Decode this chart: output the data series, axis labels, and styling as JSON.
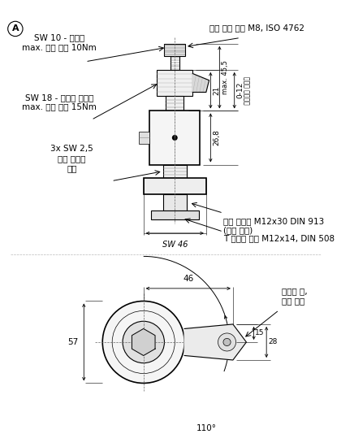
{
  "bg_color": "#ffffff",
  "line_color": "#000000",
  "fontsize_small": 7.5,
  "fontsize_label": 9,
  "label_A": "A",
  "text_sw10": "SW 10 - 블로킹\nmax. 조임 토크 10Nm",
  "text_socket": "소켓 헤드 나사 M8, ISO 4762",
  "text_sw18": "SW 18 - 작업물 클램핑\nmax. 조임 토크 15Nm",
  "text_sw25": "3x SW 2,5\n높이 스토의\n조절",
  "text_stud": "나사 스터드 M12x30 DIN 913\n(교환 가능)",
  "text_tnut": "T 슬롯용 너트 M12x14, DIN 508",
  "text_sw46": "SW 46",
  "text_stroke": "클램핑 스트로크",
  "text_clamp_jaw": "클램핑 조,\n교환 가능",
  "dim_max455": "max. 45,5",
  "dim_21": "21",
  "dim_268": "26,8",
  "dim_012": "0-12",
  "dim_46": "46",
  "dim_57": "57",
  "dim_15": "15",
  "dim_28": "28",
  "dim_110": "110°"
}
